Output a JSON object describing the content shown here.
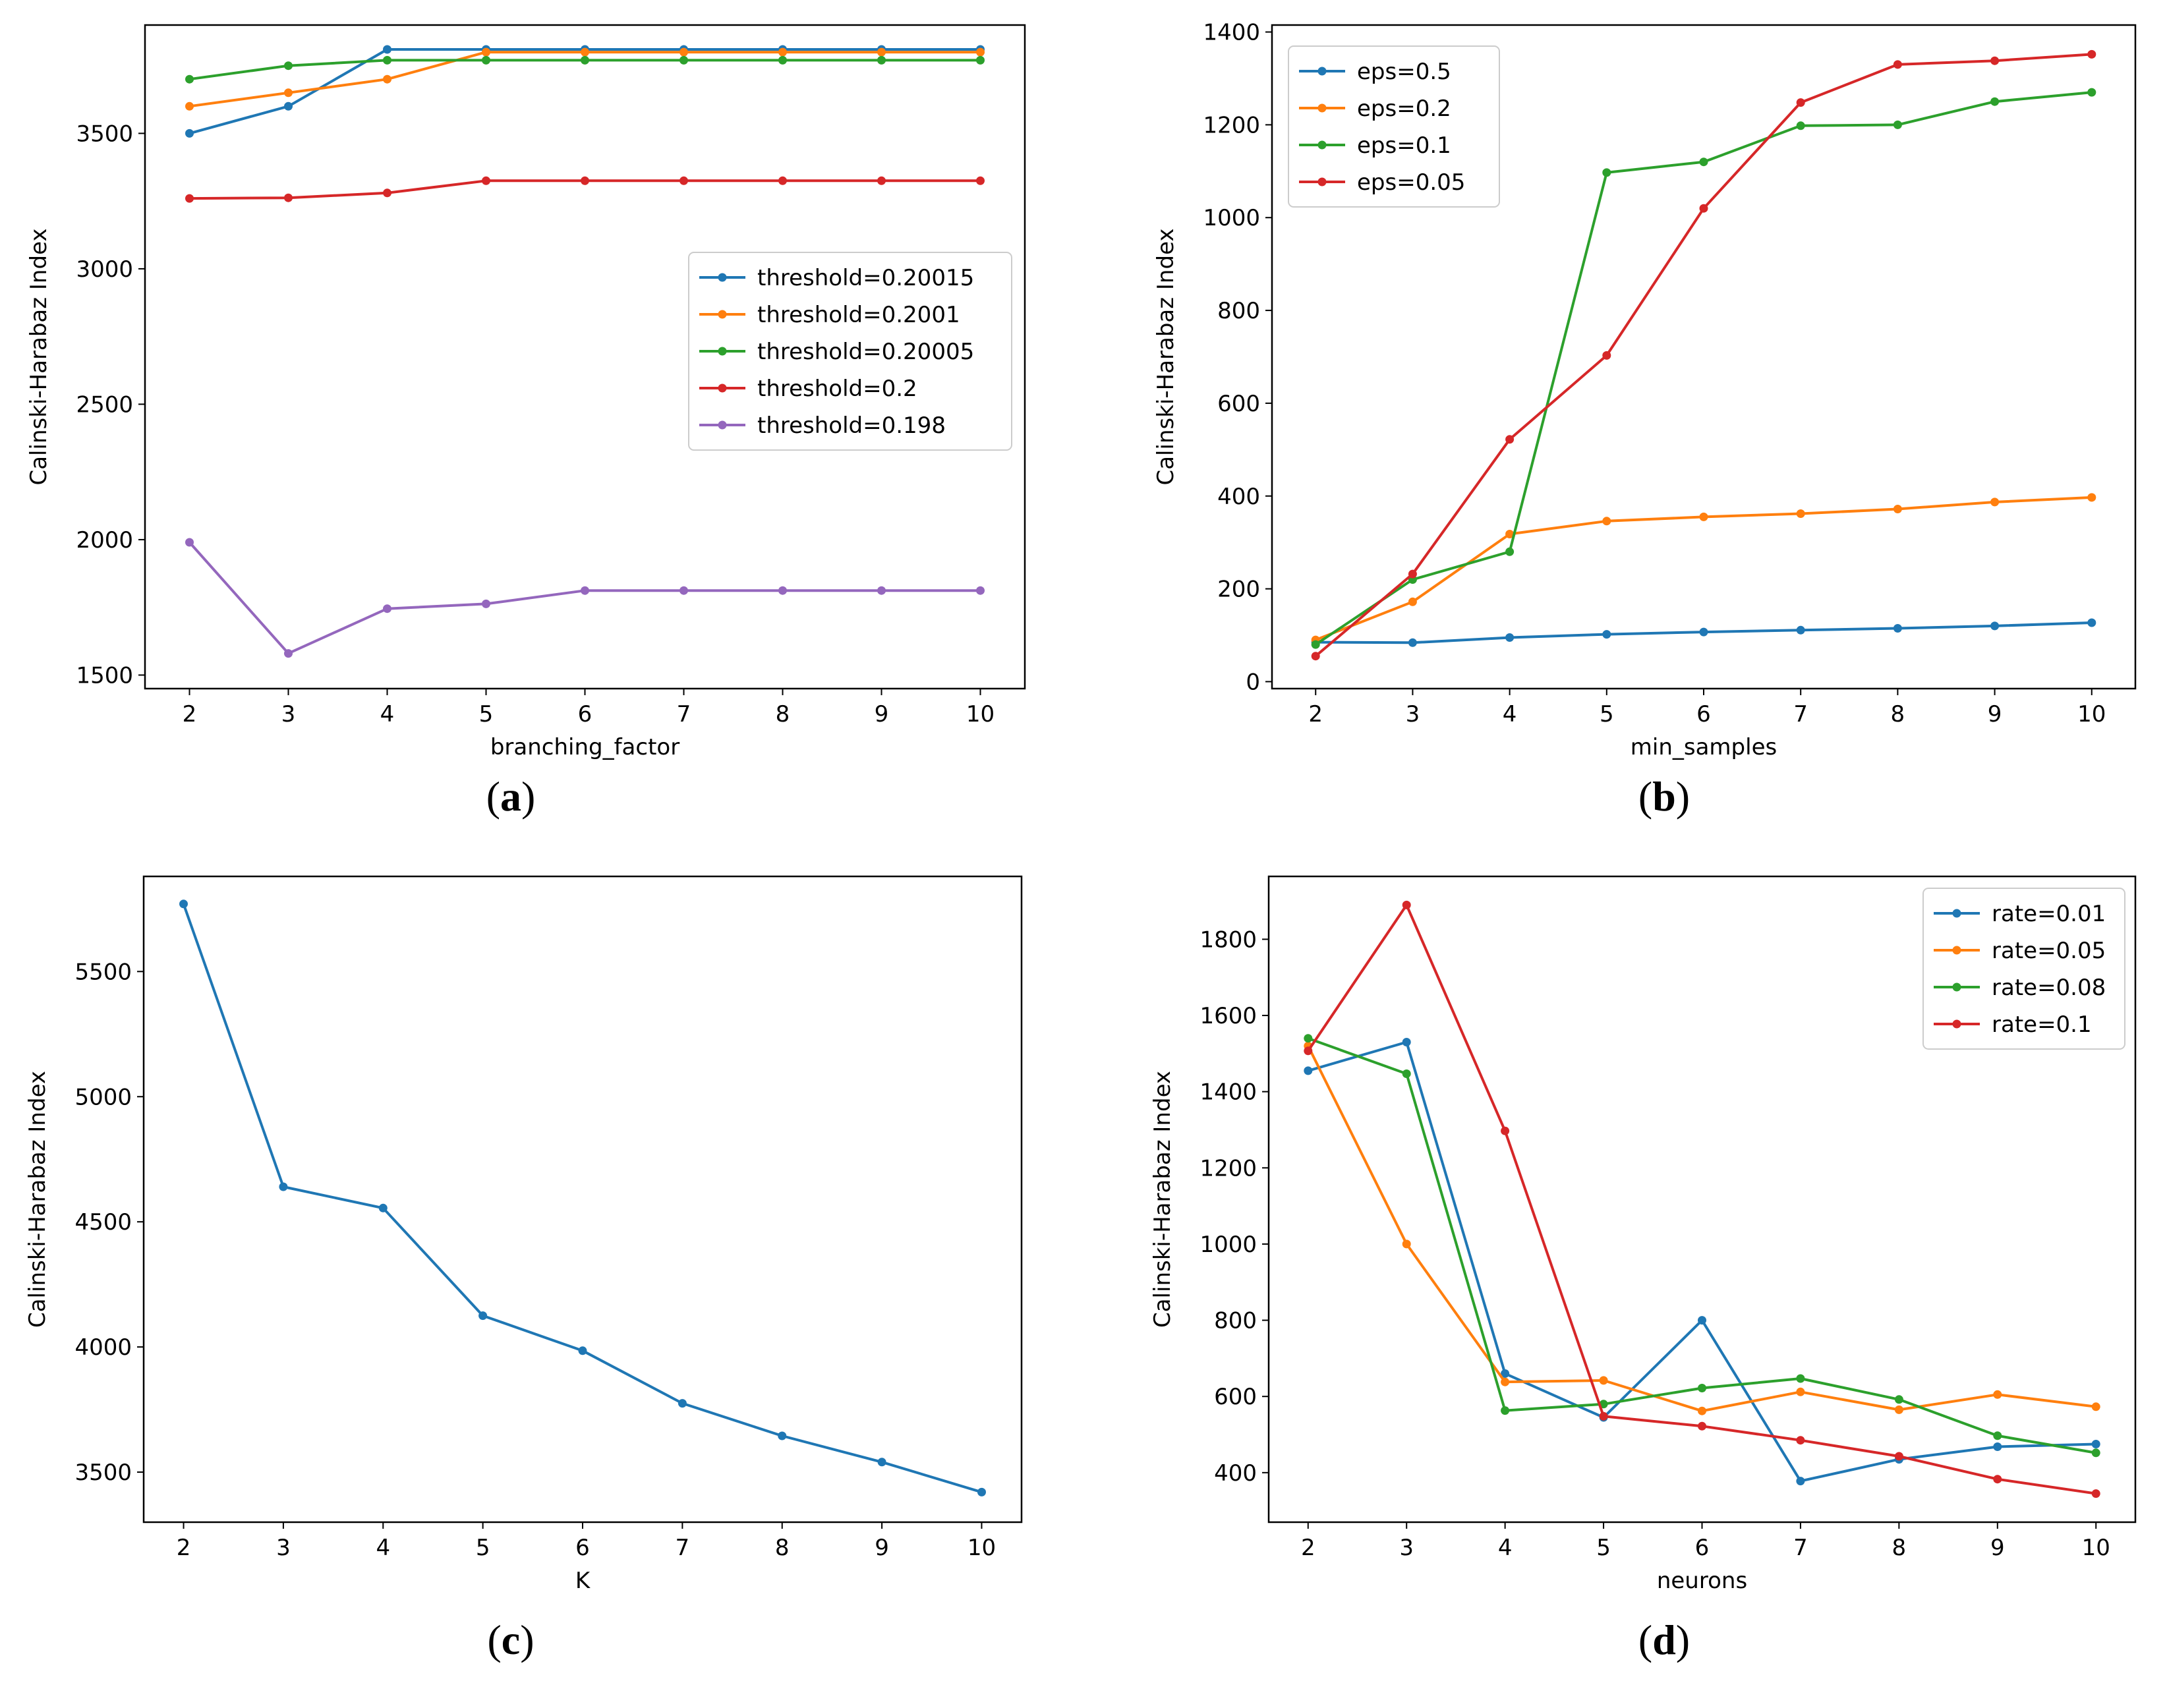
{
  "colors": {
    "blue": "#1f77b4",
    "orange": "#ff7f0e",
    "green": "#2ca02c",
    "red": "#d62728",
    "purple": "#9467bd"
  },
  "chart_data": [
    {
      "id": "a",
      "caption_letter": "a",
      "type": "line",
      "xlabel": "branching_factor",
      "ylabel": "Calinski-Harabaz Index",
      "x": [
        2,
        3,
        4,
        5,
        6,
        7,
        8,
        9,
        10
      ],
      "xlim": [
        1.55,
        10.45
      ],
      "ylim": [
        1450,
        3900
      ],
      "yticks": [
        1500,
        2000,
        2500,
        3000,
        3500
      ],
      "legend_position": "center-right",
      "series": [
        {
          "name": "threshold=0.20015",
          "color": "#1f77b4",
          "values": [
            3500,
            3600,
            3810,
            3810,
            3810,
            3810,
            3810,
            3810,
            3810
          ]
        },
        {
          "name": "threshold=0.2001",
          "color": "#ff7f0e",
          "values": [
            3600,
            3650,
            3700,
            3800,
            3800,
            3800,
            3800,
            3800,
            3800
          ]
        },
        {
          "name": "threshold=0.20005",
          "color": "#2ca02c",
          "values": [
            3700,
            3750,
            3770,
            3770,
            3770,
            3770,
            3770,
            3770,
            3770
          ]
        },
        {
          "name": "threshold=0.2",
          "color": "#d62728",
          "values": [
            3260,
            3262,
            3280,
            3325,
            3325,
            3325,
            3325,
            3325,
            3325
          ]
        },
        {
          "name": "threshold=0.198",
          "color": "#9467bd",
          "values": [
            1990,
            1580,
            1745,
            1763,
            1812,
            1812,
            1812,
            1812,
            1812
          ]
        }
      ]
    },
    {
      "id": "b",
      "caption_letter": "b",
      "type": "line",
      "xlabel": "min_samples",
      "ylabel": "Calinski-Harabaz Index",
      "x": [
        2,
        3,
        4,
        5,
        6,
        7,
        8,
        9,
        10
      ],
      "xlim": [
        1.55,
        10.45
      ],
      "ylim": [
        -15,
        1415
      ],
      "yticks": [
        0,
        200,
        400,
        600,
        800,
        1000,
        1200,
        1400
      ],
      "legend_position": "upper-left",
      "series": [
        {
          "name": "eps=0.5",
          "color": "#1f77b4",
          "values": [
            85,
            84,
            95,
            102,
            107,
            111,
            115,
            120,
            127
          ]
        },
        {
          "name": "eps=0.2",
          "color": "#ff7f0e",
          "values": [
            90,
            172,
            318,
            346,
            355,
            362,
            372,
            387,
            397
          ]
        },
        {
          "name": "eps=0.1",
          "color": "#2ca02c",
          "values": [
            80,
            220,
            280,
            1097,
            1120,
            1198,
            1200,
            1250,
            1270
          ]
        },
        {
          "name": "eps=0.05",
          "color": "#d62728",
          "values": [
            55,
            232,
            522,
            703,
            1020,
            1248,
            1330,
            1338,
            1352
          ]
        }
      ]
    },
    {
      "id": "c",
      "caption_letter": "c",
      "type": "line",
      "xlabel": "K",
      "ylabel": "Calinski-Harabaz Index",
      "x": [
        2,
        3,
        4,
        5,
        6,
        7,
        8,
        9,
        10
      ],
      "xlim": [
        1.6,
        10.4
      ],
      "ylim": [
        3300,
        5880
      ],
      "yticks": [
        3500,
        4000,
        4500,
        5000,
        5500
      ],
      "series": [
        {
          "color": "#1f77b4",
          "values": [
            5770,
            4640,
            4555,
            4125,
            3985,
            3775,
            3645,
            3540,
            3420
          ]
        }
      ]
    },
    {
      "id": "d",
      "caption_letter": "d",
      "type": "line",
      "xlabel": "neurons",
      "ylabel": "Calinski-Harabaz Index",
      "x": [
        2,
        3,
        4,
        5,
        6,
        7,
        8,
        9,
        10
      ],
      "xlim": [
        1.6,
        10.4
      ],
      "ylim": [
        270,
        1965
      ],
      "yticks": [
        400,
        600,
        800,
        1000,
        1200,
        1400,
        1600,
        1800
      ],
      "legend_position": "upper-right",
      "series": [
        {
          "name": "rate=0.01",
          "color": "#1f77b4",
          "values": [
            1455,
            1530,
            660,
            545,
            800,
            378,
            435,
            468,
            475
          ]
        },
        {
          "name": "rate=0.05",
          "color": "#ff7f0e",
          "values": [
            1520,
            1000,
            638,
            642,
            562,
            612,
            565,
            605,
            573
          ]
        },
        {
          "name": "rate=0.08",
          "color": "#2ca02c",
          "values": [
            1540,
            1447,
            563,
            580,
            622,
            647,
            592,
            497,
            452
          ]
        },
        {
          "name": "rate=0.1",
          "color": "#d62728",
          "values": [
            1507,
            1890,
            1297,
            548,
            522,
            485,
            443,
            383,
            345
          ]
        }
      ]
    }
  ]
}
